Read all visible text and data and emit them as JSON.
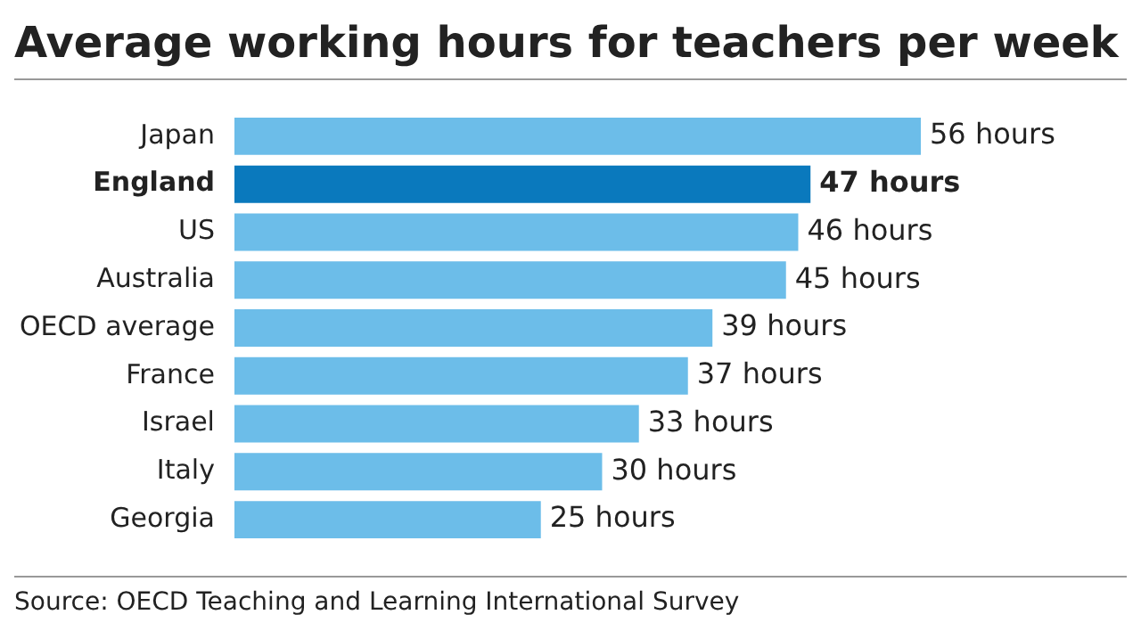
{
  "chart_data": {
    "type": "bar",
    "orientation": "horizontal",
    "title": "Average working hours for teachers per week",
    "categories": [
      "Japan",
      "England",
      "US",
      "Australia",
      "OECD average",
      "France",
      "Israel",
      "Italy",
      "Georgia"
    ],
    "values": [
      56,
      47,
      46,
      45,
      39,
      37,
      33,
      30,
      25
    ],
    "colors": [
      "#6cbde9",
      "#0a79bd",
      "#6cbde9",
      "#6cbde9",
      "#6cbde9",
      "#6cbde9",
      "#6cbde9",
      "#6cbde9",
      "#6cbde9"
    ],
    "value_labels": [
      "56 hours",
      "47 hours",
      "46 hours",
      "45 hours",
      "39 hours",
      "37 hours",
      "33 hours",
      "30 hours",
      "25 hours"
    ],
    "grid": false,
    "legend": false,
    "annotations": [
      "Source: OECD Teaching and Learning International Survey"
    ]
  }
}
